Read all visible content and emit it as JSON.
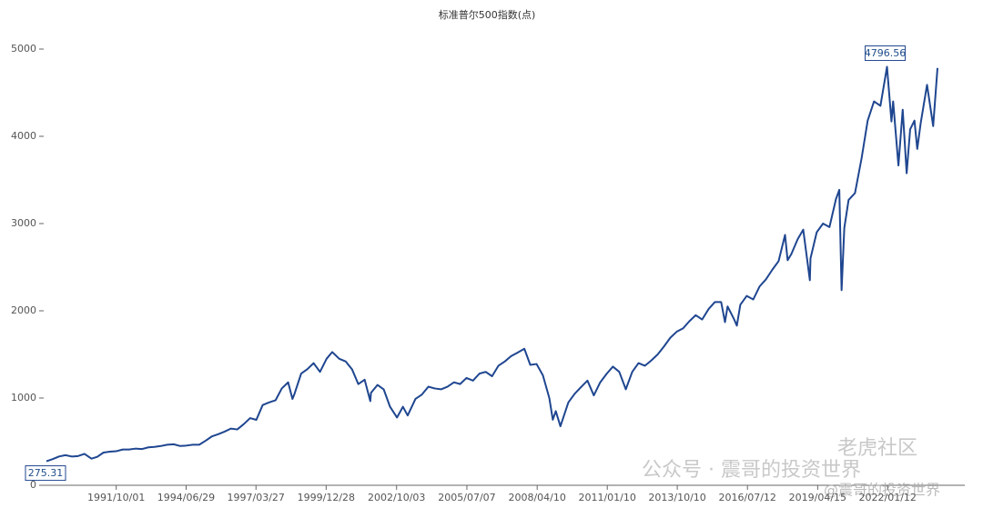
{
  "chart_data": {
    "type": "line",
    "title": "标准普尔500指数(点)",
    "xlim": [
      "1989/01/03",
      "2023/12/28"
    ],
    "xticks": [
      "1991/10/01",
      "1994/06/29",
      "1997/03/27",
      "1999/12/28",
      "2002/10/03",
      "2005/07/07",
      "2008/04/10",
      "2011/01/10",
      "2013/10/10",
      "2016/07/12",
      "2019/04/15",
      "2022/01/12"
    ],
    "ylim": [
      0,
      5000
    ],
    "yticks": [
      0,
      1000,
      2000,
      3000,
      4000,
      5000
    ],
    "grid": false,
    "series": [
      {
        "name": "标准普尔500指数",
        "color": "#1f4690",
        "x": [
          "1989/01/03",
          "1989/04/03",
          "1989/07/03",
          "1989/10/02",
          "1990/01/02",
          "1990/04/02",
          "1990/07/02",
          "1990/10/11",
          "1991/01/02",
          "1991/04/01",
          "1991/07/01",
          "1991/10/01",
          "1992/01/02",
          "1992/04/01",
          "1992/07/01",
          "1992/10/01",
          "1993/01/04",
          "1993/04/01",
          "1993/07/01",
          "1993/10/01",
          "1994/01/03",
          "1994/04/04",
          "1994/07/01",
          "1994/10/03",
          "1995/01/03",
          "1995/04/03",
          "1995/07/03",
          "1995/10/02",
          "1996/01/02",
          "1996/04/01",
          "1996/07/01",
          "1996/10/01",
          "1997/01/02",
          "1997/04/01",
          "1997/07/01",
          "1997/10/01",
          "1998/01/02",
          "1998/04/01",
          "1998/07/01",
          "1998/09/01",
          "1998/10/01",
          "1999/01/04",
          "1999/04/01",
          "1999/07/01",
          "1999/10/01",
          "2000/01/03",
          "2000/03/24",
          "2000/07/03",
          "2000/10/02",
          "2001/01/02",
          "2001/04/02",
          "2001/07/02",
          "2001/09/21",
          "2001/10/01",
          "2002/01/02",
          "2002/04/01",
          "2002/07/01",
          "2002/10/09",
          "2003/01/02",
          "2003/03/11",
          "2003/07/01",
          "2003/10/01",
          "2004/01/02",
          "2004/04/01",
          "2004/07/01",
          "2004/10/01",
          "2005/01/03",
          "2005/04/01",
          "2005/07/01",
          "2005/10/03",
          "2006/01/03",
          "2006/04/03",
          "2006/07/03",
          "2006/10/02",
          "2007/01/03",
          "2007/04/02",
          "2007/07/02",
          "2007/10/09",
          "2008/01/02",
          "2008/04/01",
          "2008/07/01",
          "2008/10/01",
          "2008/11/20",
          "2009/01/02",
          "2009/03/09",
          "2009/07/01",
          "2009/10/01",
          "2010/01/04",
          "2010/04/01",
          "2010/07/01",
          "2010/10/01",
          "2011/01/03",
          "2011/04/01",
          "2011/07/01",
          "2011/10/03",
          "2012/01/03",
          "2012/04/02",
          "2012/07/02",
          "2012/10/01",
          "2013/01/02",
          "2013/04/01",
          "2013/07/01",
          "2013/10/01",
          "2014/01/02",
          "2014/04/01",
          "2014/07/01",
          "2014/10/01",
          "2015/01/02",
          "2015/04/01",
          "2015/07/01",
          "2015/08/25",
          "2015/10/01",
          "2016/01/04",
          "2016/02/11",
          "2016/04/01",
          "2016/07/01",
          "2016/10/03",
          "2017/01/03",
          "2017/04/03",
          "2017/07/03",
          "2017/10/02",
          "2018/01/02",
          "2018/02/08",
          "2018/04/02",
          "2018/07/02",
          "2018/09/20",
          "2018/12/24",
          "2019/01/02",
          "2019/04/01",
          "2019/07/01",
          "2019/10/01",
          "2020/01/02",
          "2020/02/19",
          "2020/03/23",
          "2020/05/01",
          "2020/07/01",
          "2020/10/01",
          "2021/01/04",
          "2021/04/01",
          "2021/07/01",
          "2021/10/01",
          "2022/01/03",
          "2022/03/08",
          "2022/04/01",
          "2022/06/16",
          "2022/08/16",
          "2022/10/12",
          "2022/12/01",
          "2023/02/01",
          "2023/03/13",
          "2023/05/01",
          "2023/07/31",
          "2023/10/27",
          "2023/12/28"
        ],
        "values": [
          275.31,
          300,
          330,
          345,
          330,
          335,
          360,
          305,
          326,
          375,
          385,
          390,
          410,
          410,
          420,
          415,
          435,
          440,
          450,
          465,
          470,
          450,
          455,
          465,
          465,
          510,
          560,
          585,
          615,
          650,
          640,
          700,
          770,
          750,
          920,
          950,
          975,
          1110,
          1180,
          990,
          1050,
          1280,
          1330,
          1400,
          1300,
          1450,
          1527,
          1450,
          1420,
          1330,
          1160,
          1210,
          965,
          1060,
          1150,
          1100,
          900,
          777,
          900,
          800,
          990,
          1040,
          1130,
          1110,
          1100,
          1130,
          1180,
          1160,
          1230,
          1200,
          1280,
          1300,
          1250,
          1370,
          1420,
          1480,
          1520,
          1565,
          1380,
          1390,
          1260,
          1000,
          752,
          850,
          676,
          950,
          1050,
          1130,
          1200,
          1030,
          1180,
          1280,
          1360,
          1300,
          1100,
          1300,
          1400,
          1370,
          1430,
          1500,
          1590,
          1690,
          1760,
          1800,
          1880,
          1950,
          1900,
          2020,
          2100,
          2100,
          1870,
          2050,
          1900,
          1830,
          2070,
          2170,
          2130,
          2280,
          2360,
          2470,
          2570,
          2870,
          2580,
          2650,
          2820,
          2930,
          2350,
          2600,
          2900,
          3000,
          2960,
          3280,
          3386,
          2237,
          2950,
          3270,
          3350,
          3750,
          4180,
          4400,
          4350,
          4796.56,
          4170,
          4400,
          3666,
          4305,
          3577,
          4080,
          4180,
          3855,
          4150,
          4590,
          4117,
          4783
        ]
      }
    ],
    "annotations": [
      {
        "x": "1989/01/03",
        "value": 275.31
      },
      {
        "x": "2022/01/03",
        "value": 4796.56
      }
    ]
  },
  "watermark": {
    "wechat": "公众号 · 震哥的投资世界",
    "community": "老虎社区",
    "author": "@震哥的投资世界"
  }
}
